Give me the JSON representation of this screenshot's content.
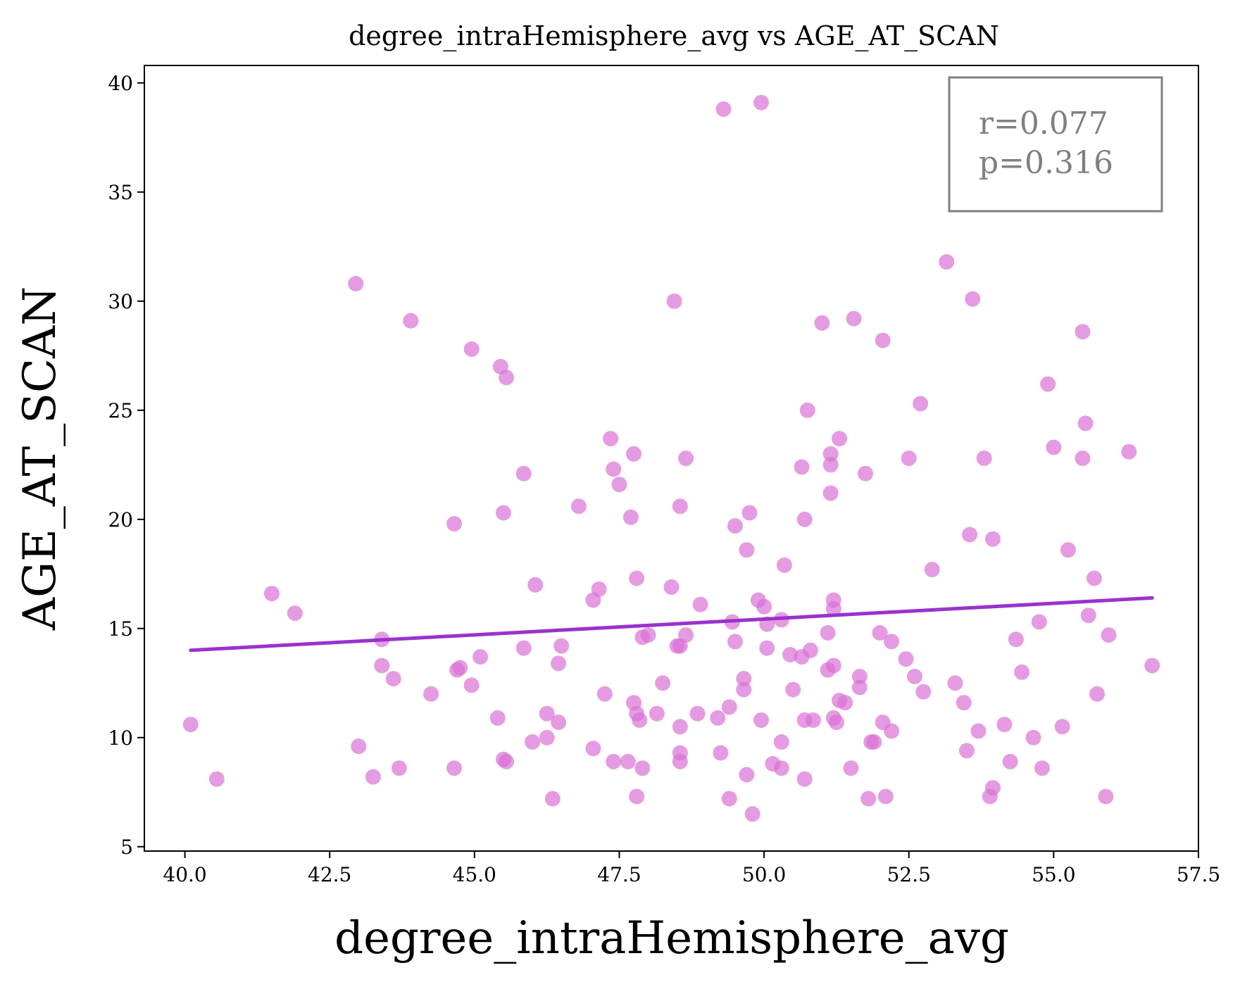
{
  "chart_data": {
    "type": "scatter",
    "title": "degree_intraHemisphere_avg vs AGE_AT_SCAN",
    "xlabel": "degree_intraHemisphere_avg",
    "ylabel": "AGE_AT_SCAN",
    "xlim": [
      39.3,
      57.5
    ],
    "ylim": [
      4.8,
      40.8
    ],
    "xticks": [
      "40.0",
      "42.5",
      "45.0",
      "47.5",
      "50.0",
      "52.5",
      "55.0",
      "57.5"
    ],
    "yticks": [
      "5",
      "10",
      "15",
      "20",
      "25",
      "30",
      "35",
      "40"
    ],
    "grid": false,
    "point_color": "#da70d6",
    "line_color": "#9932cc",
    "annotation": {
      "lines": [
        "r=0.077",
        "p=0.316"
      ],
      "color": "#808080",
      "placement": "top-right"
    },
    "regression": {
      "x": [
        40.1,
        56.7
      ],
      "y": [
        14.0,
        16.4
      ]
    },
    "points": [
      [
        40.1,
        10.6
      ],
      [
        40.55,
        8.1
      ],
      [
        41.5,
        16.6
      ],
      [
        41.9,
        15.7
      ],
      [
        42.95,
        30.8
      ],
      [
        43.0,
        9.6
      ],
      [
        43.25,
        8.2
      ],
      [
        43.4,
        14.5
      ],
      [
        43.4,
        13.3
      ],
      [
        43.6,
        12.7
      ],
      [
        43.7,
        8.6
      ],
      [
        43.9,
        29.1
      ],
      [
        44.25,
        12.0
      ],
      [
        44.65,
        19.8
      ],
      [
        44.65,
        8.6
      ],
      [
        44.75,
        13.2
      ],
      [
        44.7,
        13.1
      ],
      [
        44.95,
        27.8
      ],
      [
        44.95,
        12.4
      ],
      [
        45.1,
        13.7
      ],
      [
        45.4,
        10.9
      ],
      [
        45.45,
        27.0
      ],
      [
        45.5,
        9.0
      ],
      [
        45.5,
        20.3
      ],
      [
        45.55,
        26.5
      ],
      [
        45.55,
        8.9
      ],
      [
        45.85,
        22.1
      ],
      [
        45.85,
        14.1
      ],
      [
        46.0,
        9.8
      ],
      [
        46.05,
        17.0
      ],
      [
        46.25,
        11.1
      ],
      [
        46.25,
        10.0
      ],
      [
        46.35,
        7.2
      ],
      [
        46.45,
        13.4
      ],
      [
        46.45,
        10.7
      ],
      [
        46.5,
        14.2
      ],
      [
        46.8,
        20.6
      ],
      [
        47.05,
        16.3
      ],
      [
        47.05,
        9.5
      ],
      [
        47.15,
        16.8
      ],
      [
        47.25,
        12.0
      ],
      [
        47.35,
        23.7
      ],
      [
        47.4,
        22.3
      ],
      [
        47.4,
        8.9
      ],
      [
        47.5,
        21.6
      ],
      [
        47.65,
        8.9
      ],
      [
        47.7,
        20.1
      ],
      [
        47.75,
        11.6
      ],
      [
        47.75,
        23.0
      ],
      [
        47.8,
        17.3
      ],
      [
        47.8,
        11.1
      ],
      [
        47.8,
        7.3
      ],
      [
        47.85,
        10.8
      ],
      [
        47.9,
        14.6
      ],
      [
        47.9,
        8.6
      ],
      [
        48.0,
        14.7
      ],
      [
        48.15,
        11.1
      ],
      [
        48.25,
        12.5
      ],
      [
        48.4,
        16.9
      ],
      [
        48.45,
        30.0
      ],
      [
        48.5,
        14.2
      ],
      [
        48.55,
        14.2
      ],
      [
        48.55,
        10.5
      ],
      [
        48.55,
        20.6
      ],
      [
        48.55,
        9.3
      ],
      [
        48.55,
        8.9
      ],
      [
        48.65,
        14.7
      ],
      [
        48.65,
        22.8
      ],
      [
        48.85,
        11.1
      ],
      [
        48.9,
        16.1
      ],
      [
        49.2,
        10.9
      ],
      [
        49.25,
        9.3
      ],
      [
        49.3,
        38.8
      ],
      [
        49.4,
        11.4
      ],
      [
        49.4,
        7.2
      ],
      [
        49.45,
        15.3
      ],
      [
        49.5,
        19.7
      ],
      [
        49.5,
        14.4
      ],
      [
        49.65,
        12.7
      ],
      [
        49.65,
        12.2
      ],
      [
        49.7,
        8.3
      ],
      [
        49.7,
        18.6
      ],
      [
        49.75,
        20.3
      ],
      [
        49.8,
        6.5
      ],
      [
        49.9,
        16.3
      ],
      [
        49.95,
        39.1
      ],
      [
        50.0,
        16.0
      ],
      [
        49.95,
        10.8
      ],
      [
        50.05,
        14.1
      ],
      [
        50.05,
        15.2
      ],
      [
        50.15,
        8.8
      ],
      [
        50.3,
        15.4
      ],
      [
        50.3,
        9.8
      ],
      [
        50.35,
        17.9
      ],
      [
        50.3,
        8.6
      ],
      [
        50.45,
        13.8
      ],
      [
        50.5,
        12.2
      ],
      [
        50.65,
        22.4
      ],
      [
        50.7,
        20.0
      ],
      [
        50.65,
        13.7
      ],
      [
        50.7,
        10.8
      ],
      [
        50.7,
        8.1
      ],
      [
        50.75,
        25.0
      ],
      [
        50.8,
        14.0
      ],
      [
        50.85,
        10.8
      ],
      [
        51.0,
        29.0
      ],
      [
        51.1,
        14.8
      ],
      [
        51.1,
        13.1
      ],
      [
        51.15,
        22.5
      ],
      [
        51.15,
        21.2
      ],
      [
        51.15,
        23.0
      ],
      [
        51.2,
        16.3
      ],
      [
        51.2,
        15.9
      ],
      [
        51.2,
        13.3
      ],
      [
        51.2,
        10.9
      ],
      [
        51.3,
        23.7
      ],
      [
        51.25,
        10.7
      ],
      [
        51.3,
        11.7
      ],
      [
        51.4,
        11.6
      ],
      [
        51.5,
        8.6
      ],
      [
        51.55,
        29.2
      ],
      [
        51.65,
        12.8
      ],
      [
        51.65,
        12.3
      ],
      [
        51.75,
        22.1
      ],
      [
        51.8,
        7.2
      ],
      [
        51.85,
        9.8
      ],
      [
        51.9,
        9.8
      ],
      [
        52.0,
        14.8
      ],
      [
        52.05,
        28.2
      ],
      [
        52.05,
        10.7
      ],
      [
        52.1,
        7.3
      ],
      [
        52.2,
        14.4
      ],
      [
        52.2,
        10.3
      ],
      [
        52.45,
        13.6
      ],
      [
        52.5,
        22.8
      ],
      [
        52.6,
        12.8
      ],
      [
        52.7,
        25.3
      ],
      [
        52.75,
        12.1
      ],
      [
        52.9,
        17.7
      ],
      [
        53.15,
        31.8
      ],
      [
        53.3,
        12.5
      ],
      [
        53.45,
        11.6
      ],
      [
        53.5,
        9.4
      ],
      [
        53.55,
        19.3
      ],
      [
        53.6,
        30.1
      ],
      [
        53.7,
        10.3
      ],
      [
        53.8,
        22.8
      ],
      [
        53.9,
        7.3
      ],
      [
        53.95,
        7.7
      ],
      [
        53.95,
        19.1
      ],
      [
        54.15,
        10.6
      ],
      [
        54.25,
        8.9
      ],
      [
        54.35,
        14.5
      ],
      [
        54.45,
        13.0
      ],
      [
        54.65,
        10.0
      ],
      [
        54.75,
        15.3
      ],
      [
        54.8,
        8.6
      ],
      [
        54.9,
        26.2
      ],
      [
        55.0,
        23.3
      ],
      [
        55.15,
        10.5
      ],
      [
        55.25,
        18.6
      ],
      [
        55.5,
        22.8
      ],
      [
        55.5,
        28.6
      ],
      [
        55.55,
        24.4
      ],
      [
        55.6,
        15.6
      ],
      [
        55.7,
        17.3
      ],
      [
        55.75,
        12.0
      ],
      [
        55.9,
        7.3
      ],
      [
        55.95,
        14.7
      ],
      [
        56.3,
        23.1
      ],
      [
        56.7,
        13.3
      ]
    ]
  }
}
